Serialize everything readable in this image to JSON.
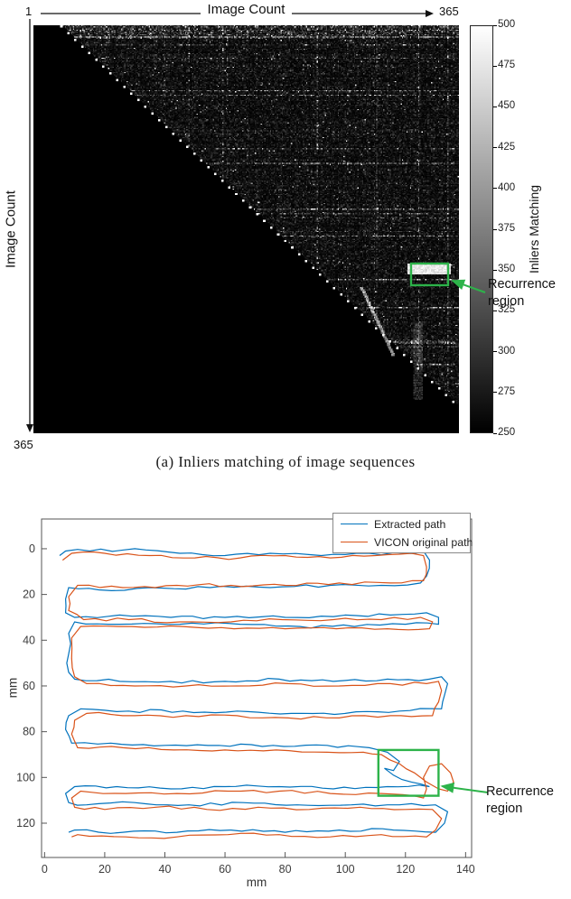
{
  "caption": {
    "a": "(a) Inliers matching of image sequences"
  },
  "annotations": {
    "recurrence_line1": "Recurrence",
    "recurrence_line2": "region",
    "color": "#2db34a"
  },
  "heatmap_fig": {
    "x_axis_label": "Image Count",
    "y_axis_label": "Image Count",
    "x_min_label": "1",
    "x_max_label": "365",
    "y_max_label": "365",
    "colorbar_label": "Inliers Matching"
  },
  "path_fig": {
    "x_axis_label": "mm",
    "y_axis_label": "mm",
    "legend": [
      {
        "label": "Extracted path",
        "color": "#0072bd"
      },
      {
        "label": "VICON original path",
        "color": "#d95319"
      }
    ]
  },
  "chart_data": [
    {
      "type": "heatmap",
      "title": "",
      "xlabel": "Image Count",
      "ylabel": "Image Count",
      "x_range": [
        1,
        365
      ],
      "y_range": [
        1,
        365
      ],
      "colorbar": {
        "label": "Inliers Matching",
        "clim": [
          250,
          500
        ],
        "ticks": [
          500,
          475,
          450,
          425,
          400,
          375,
          350,
          325,
          300,
          275,
          250
        ]
      },
      "description": "Upper-triangular pairwise inliers-matching matrix of 365 images; lower triangle and a band along the diagonal are black (below 250 inliers); sparse bright speckle with horizontal streak rows; dotted white staircase along the diagonal edge; a bright white recurrence block near rows 213-222, columns 321-357 highlighted by a green box labelled Recurrence region.",
      "pattern": {
        "matrix_size": 365,
        "diagonal_band_black": 24,
        "seed": 42,
        "top_dense_rows": 12,
        "dot_spacing": 6,
        "bright_block": {
          "rows": [
            213,
            222
          ],
          "cols": [
            321,
            357
          ]
        },
        "diag_streak": {
          "row0": 234,
          "col0": 281,
          "length": 62,
          "col_per_row": 0.45
        },
        "vertical_streak": {
          "cols": [
            326,
            333
          ],
          "rows": [
            266,
            334
          ]
        }
      },
      "annotation": {
        "label": "Recurrence region",
        "box_rows": [
          213,
          232
        ],
        "box_cols": [
          324,
          356
        ]
      }
    },
    {
      "type": "line",
      "title": "",
      "xlabel": "mm",
      "ylabel": "mm",
      "xlim": [
        0,
        140
      ],
      "ylim": [
        0,
        130
      ],
      "y_inverted": true,
      "x_ticks": [
        0,
        20,
        40,
        60,
        80,
        100,
        120,
        140
      ],
      "y_ticks": [
        0,
        20,
        40,
        60,
        80,
        100,
        120
      ],
      "legend_position": "top-right",
      "jitter_mm": 0.7,
      "seed": 7,
      "annotation": {
        "label": "Recurrence region",
        "box_x": [
          111,
          131
        ],
        "box_y": [
          88,
          108
        ]
      },
      "series": [
        {
          "name": "Extracted path",
          "color": "#0072bd",
          "points": [
            [
              5,
              3
            ],
            [
              7,
              1
            ],
            [
              15,
              1
            ],
            [
              30,
              0
            ],
            [
              45,
              2
            ],
            [
              60,
              3
            ],
            [
              75,
              2
            ],
            [
              92,
              3
            ],
            [
              108,
              2
            ],
            [
              120,
              2
            ],
            [
              126,
              1
            ],
            [
              128,
              5
            ],
            [
              127,
              12
            ],
            [
              125,
              15
            ],
            [
              112,
              16
            ],
            [
              95,
              16
            ],
            [
              75,
              17
            ],
            [
              55,
              17
            ],
            [
              35,
              17
            ],
            [
              18,
              18
            ],
            [
              8,
              17
            ],
            [
              7,
              22
            ],
            [
              7,
              28
            ],
            [
              10,
              30
            ],
            [
              25,
              29
            ],
            [
              42,
              30
            ],
            [
              60,
              30
            ],
            [
              80,
              30
            ],
            [
              100,
              29
            ],
            [
              115,
              29
            ],
            [
              127,
              28
            ],
            [
              131,
              30
            ],
            [
              131,
              33
            ],
            [
              120,
              33
            ],
            [
              103,
              34
            ],
            [
              85,
              34
            ],
            [
              65,
              33
            ],
            [
              45,
              33
            ],
            [
              25,
              33
            ],
            [
              10,
              32
            ],
            [
              8,
              37
            ],
            [
              8,
              46
            ],
            [
              8,
              54
            ],
            [
              10,
              57
            ],
            [
              25,
              58
            ],
            [
              42,
              58
            ],
            [
              60,
              58
            ],
            [
              78,
              57
            ],
            [
              96,
              58
            ],
            [
              114,
              57
            ],
            [
              128,
              57
            ],
            [
              132,
              56
            ],
            [
              134,
              59
            ],
            [
              133,
              64
            ],
            [
              132,
              70
            ],
            [
              118,
              71
            ],
            [
              100,
              72
            ],
            [
              82,
              72
            ],
            [
              64,
              71
            ],
            [
              46,
              71
            ],
            [
              28,
              71
            ],
            [
              12,
              70
            ],
            [
              8,
              73
            ],
            [
              7,
              79
            ],
            [
              9,
              85
            ],
            [
              22,
              85
            ],
            [
              40,
              86
            ],
            [
              58,
              86
            ],
            [
              76,
              86
            ],
            [
              94,
              86
            ],
            [
              108,
              87
            ],
            [
              114,
              89
            ],
            [
              118,
              93
            ],
            [
              116,
              97
            ],
            [
              113,
              96
            ],
            [
              116,
              99
            ],
            [
              122,
              102
            ],
            [
              128,
              104
            ],
            [
              114,
              104
            ],
            [
              96,
              105
            ],
            [
              78,
              104
            ],
            [
              60,
              104
            ],
            [
              42,
              105
            ],
            [
              24,
              104
            ],
            [
              10,
              104
            ],
            [
              7,
              107
            ],
            [
              8,
              111
            ],
            [
              14,
              112
            ],
            [
              30,
              111
            ],
            [
              48,
              112
            ],
            [
              66,
              111
            ],
            [
              84,
              112
            ],
            [
              102,
              112
            ],
            [
              118,
              112
            ],
            [
              130,
              112
            ],
            [
              134,
              115
            ],
            [
              133,
              120
            ],
            [
              130,
              124
            ],
            [
              116,
              123
            ],
            [
              98,
              123
            ],
            [
              80,
              124
            ],
            [
              62,
              123
            ],
            [
              44,
              124
            ],
            [
              26,
              124
            ],
            [
              10,
              123
            ],
            [
              8,
              124
            ]
          ]
        },
        {
          "name": "VICON original path",
          "color": "#d95319",
          "points": [
            [
              6,
              5
            ],
            [
              9,
              2
            ],
            [
              20,
              2
            ],
            [
              35,
              3
            ],
            [
              50,
              4
            ],
            [
              65,
              4
            ],
            [
              80,
              3
            ],
            [
              95,
              4
            ],
            [
              110,
              3
            ],
            [
              122,
              2
            ],
            [
              126,
              3
            ],
            [
              127,
              8
            ],
            [
              126,
              14
            ],
            [
              115,
              15
            ],
            [
              98,
              15
            ],
            [
              80,
              16
            ],
            [
              62,
              16
            ],
            [
              44,
              16
            ],
            [
              26,
              17
            ],
            [
              11,
              16
            ],
            [
              8,
              21
            ],
            [
              8,
              27
            ],
            [
              13,
              31
            ],
            [
              28,
              31
            ],
            [
              45,
              32
            ],
            [
              62,
              32
            ],
            [
              79,
              31
            ],
            [
              96,
              31
            ],
            [
              112,
              31
            ],
            [
              125,
              30
            ],
            [
              129,
              32
            ],
            [
              128,
              35
            ],
            [
              114,
              35
            ],
            [
              97,
              35
            ],
            [
              80,
              35
            ],
            [
              63,
              35
            ],
            [
              46,
              34
            ],
            [
              29,
              34
            ],
            [
              12,
              34
            ],
            [
              9,
              39
            ],
            [
              9,
              48
            ],
            [
              10,
              56
            ],
            [
              14,
              59
            ],
            [
              30,
              60
            ],
            [
              47,
              60
            ],
            [
              64,
              60
            ],
            [
              81,
              59
            ],
            [
              98,
              60
            ],
            [
              115,
              59
            ],
            [
              127,
              59
            ],
            [
              131,
              58
            ],
            [
              132,
              62
            ],
            [
              131,
              67
            ],
            [
              129,
              73
            ],
            [
              115,
              73
            ],
            [
              98,
              74
            ],
            [
              81,
              74
            ],
            [
              64,
              73
            ],
            [
              47,
              73
            ],
            [
              30,
              73
            ],
            [
              14,
              72
            ],
            [
              10,
              75
            ],
            [
              9,
              81
            ],
            [
              11,
              87
            ],
            [
              26,
              87
            ],
            [
              43,
              88
            ],
            [
              60,
              88
            ],
            [
              77,
              88
            ],
            [
              94,
              89
            ],
            [
              106,
              89
            ],
            [
              112,
              90
            ],
            [
              118,
              94
            ],
            [
              123,
              98
            ],
            [
              127,
              102
            ],
            [
              131,
              105
            ],
            [
              134,
              106
            ],
            [
              136,
              102
            ],
            [
              135,
              98
            ],
            [
              132,
              94
            ],
            [
              128,
              95
            ],
            [
              126,
              100
            ],
            [
              127,
              105
            ],
            [
              126,
              109
            ],
            [
              112,
              107
            ],
            [
              95,
              107
            ],
            [
              78,
              106
            ],
            [
              61,
              106
            ],
            [
              44,
              107
            ],
            [
              27,
              107
            ],
            [
              12,
              106
            ],
            [
              9,
              109
            ],
            [
              10,
              113
            ],
            [
              20,
              114
            ],
            [
              37,
              113
            ],
            [
              54,
              114
            ],
            [
              71,
              113
            ],
            [
              88,
              114
            ],
            [
              105,
              113
            ],
            [
              120,
              114
            ],
            [
              129,
              114
            ],
            [
              132,
              118
            ],
            [
              130,
              123
            ],
            [
              127,
              126
            ],
            [
              112,
              125
            ],
            [
              95,
              126
            ],
            [
              78,
              125
            ],
            [
              61,
              125
            ],
            [
              44,
              126
            ],
            [
              27,
              126
            ],
            [
              11,
              125
            ],
            [
              9,
              126
            ]
          ]
        }
      ]
    }
  ]
}
